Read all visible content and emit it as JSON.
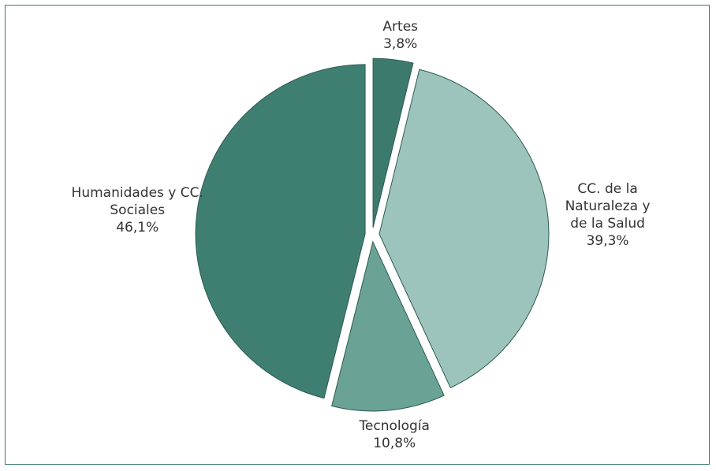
{
  "chart_data": {
    "type": "pie",
    "categories": [
      "Artes",
      "CC. de la Naturaleza y de la Salud",
      "Tecnología",
      "Humanidades y CC. Sociales"
    ],
    "values": [
      3.8,
      39.3,
      10.8,
      46.1
    ],
    "value_labels": [
      "3,8%",
      "39,3%",
      "10,8%",
      "46,1%"
    ],
    "colors": [
      "#3d7a6e",
      "#9dc4bc",
      "#6aa396",
      "#3f7f72"
    ]
  }
}
